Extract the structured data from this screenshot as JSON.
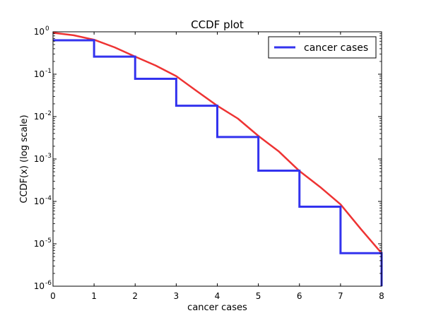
{
  "chart_data": {
    "type": "line",
    "title": "CCDF plot",
    "xlabel": "cancer cases",
    "ylabel": "CCDF(x) (log scale)",
    "xlim": [
      0,
      8
    ],
    "ylim": [
      1e-06,
      1
    ],
    "yscale": "log",
    "grid": false,
    "legend_position": "top-right",
    "x_ticks": [
      "0",
      "1",
      "2",
      "3",
      "4",
      "5",
      "6",
      "7",
      "8"
    ],
    "y_ticks": [
      {
        "base": "10",
        "exp": "0",
        "value": 1
      },
      {
        "base": "10",
        "exp": "-1",
        "value": 0.1
      },
      {
        "base": "10",
        "exp": "-2",
        "value": 0.01
      },
      {
        "base": "10",
        "exp": "-3",
        "value": 0.001
      },
      {
        "base": "10",
        "exp": "-4",
        "value": 0.0001
      },
      {
        "base": "10",
        "exp": "-5",
        "value": 1e-05
      },
      {
        "base": "10",
        "exp": "-6",
        "value": 1e-06
      }
    ],
    "series": [
      {
        "name": "cancer cases",
        "kind": "step",
        "color": "#3333ee",
        "x": [
          0,
          1,
          2,
          3,
          4,
          5,
          6,
          7,
          8
        ],
        "values": [
          0.63,
          0.26,
          0.078,
          0.018,
          0.0033,
          0.00053,
          7.5e-05,
          6e-06,
          6e-06
        ]
      },
      {
        "kind": "curve",
        "color": "#ee3333",
        "x": [
          0,
          0.5,
          1,
          1.5,
          2,
          2.5,
          3,
          3.5,
          4,
          4.5,
          5,
          5.5,
          6,
          6.5,
          7,
          7.5,
          8
        ],
        "values": [
          0.95,
          0.83,
          0.65,
          0.43,
          0.26,
          0.16,
          0.09,
          0.04,
          0.018,
          0.009,
          0.0035,
          0.0015,
          0.00052,
          0.00022,
          8.5e-05,
          2.2e-05,
          6e-06
        ]
      }
    ]
  }
}
